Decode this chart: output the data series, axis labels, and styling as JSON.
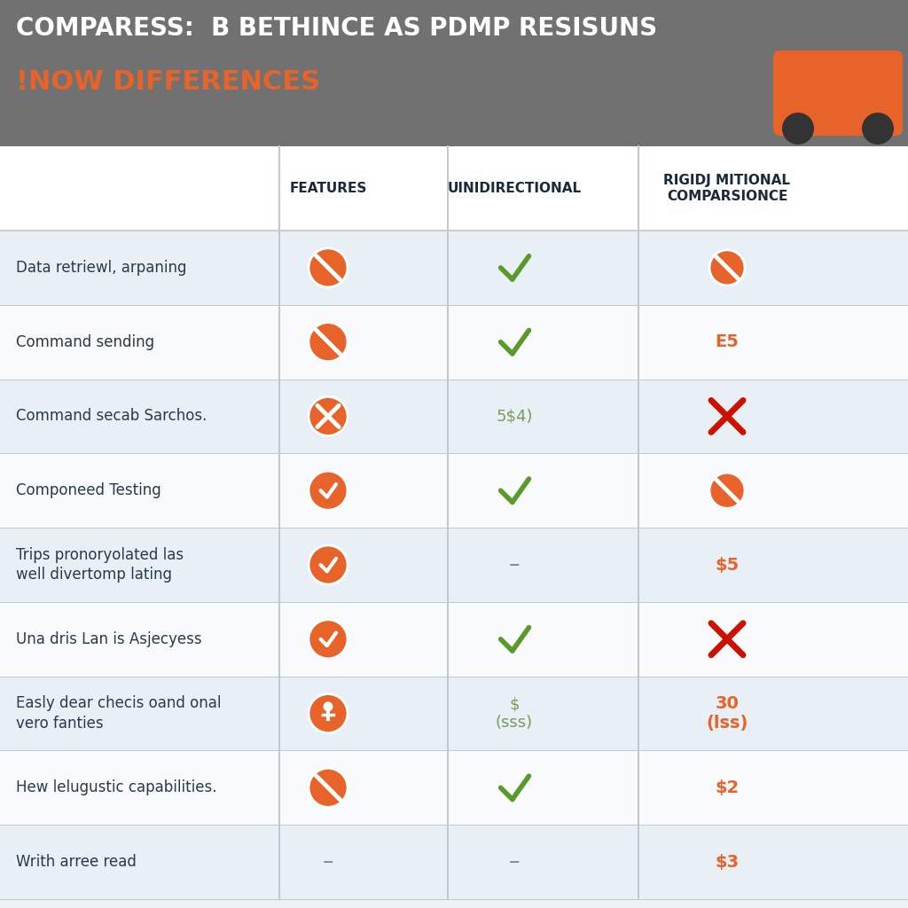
{
  "title_line1": "COMPARESS:  B BETHINCE AS PDMP RESISUNS",
  "title_line2": "!NOW DIFFERENCES",
  "header_bg": "#717171",
  "title_color": "#ffffff",
  "subtitle_color": "#e8632a",
  "col_headers": [
    "FEATURES",
    "UINIDIRECTIONAL",
    "RIGIDJ MITIONAL\nCOMPARSIONCE"
  ],
  "col_header_color": "#1a2a3a",
  "rows": [
    {
      "feature": "Data retriewl, arpaning",
      "feat_icon": "slash_circle_orange",
      "uni": "check_green",
      "bidi": "slash_circle_small_orange"
    },
    {
      "feature": "Command sending",
      "feat_icon": "slash_circle_orange",
      "uni": "check_green",
      "bidi": "E5"
    },
    {
      "feature": "Command secab Sarchos.",
      "feat_icon": "x_circle_orange",
      "uni": "5$4)",
      "bidi": "x_red"
    },
    {
      "feature": "Componeed Testing",
      "feat_icon": "check_orange_circle",
      "uni": "check_green",
      "bidi": "slash_circle_small_orange"
    },
    {
      "feature": "Trips pronoryolated las\nwell divertomp lating",
      "feat_icon": "check_orange_circle",
      "uni": "–",
      "bidi": "$5"
    },
    {
      "feature": "Una dris Lan is Asjecyess",
      "feat_icon": "check_orange_circle",
      "uni": "check_green",
      "bidi": "x_red"
    },
    {
      "feature": "Easly dear checis oand onal\nvero fanties",
      "feat_icon": "person_circle_orange",
      "uni": "$\n(sss)",
      "bidi": "30\n(lss)"
    },
    {
      "feature": "Hew lelugustic capabilities.",
      "feat_icon": "slash_circle_orange",
      "uni": "check_green",
      "bidi": "$2"
    },
    {
      "feature": "Writh arree read",
      "feat_icon": "–",
      "uni": "–",
      "bidi": "$3"
    }
  ],
  "row_bg_odd": "#e8eff5",
  "row_bg_even": "#f8fafb",
  "text_color_feature": "#2a3a4a",
  "text_color_bidi": "#e8632a",
  "text_color_uni_text": "#7a9a5a",
  "orange": "#e8632a",
  "red": "#cc1100",
  "green": "#5a9a2a",
  "dark_navy": "#1a2a3a",
  "fig_bg": "#eef2f6"
}
